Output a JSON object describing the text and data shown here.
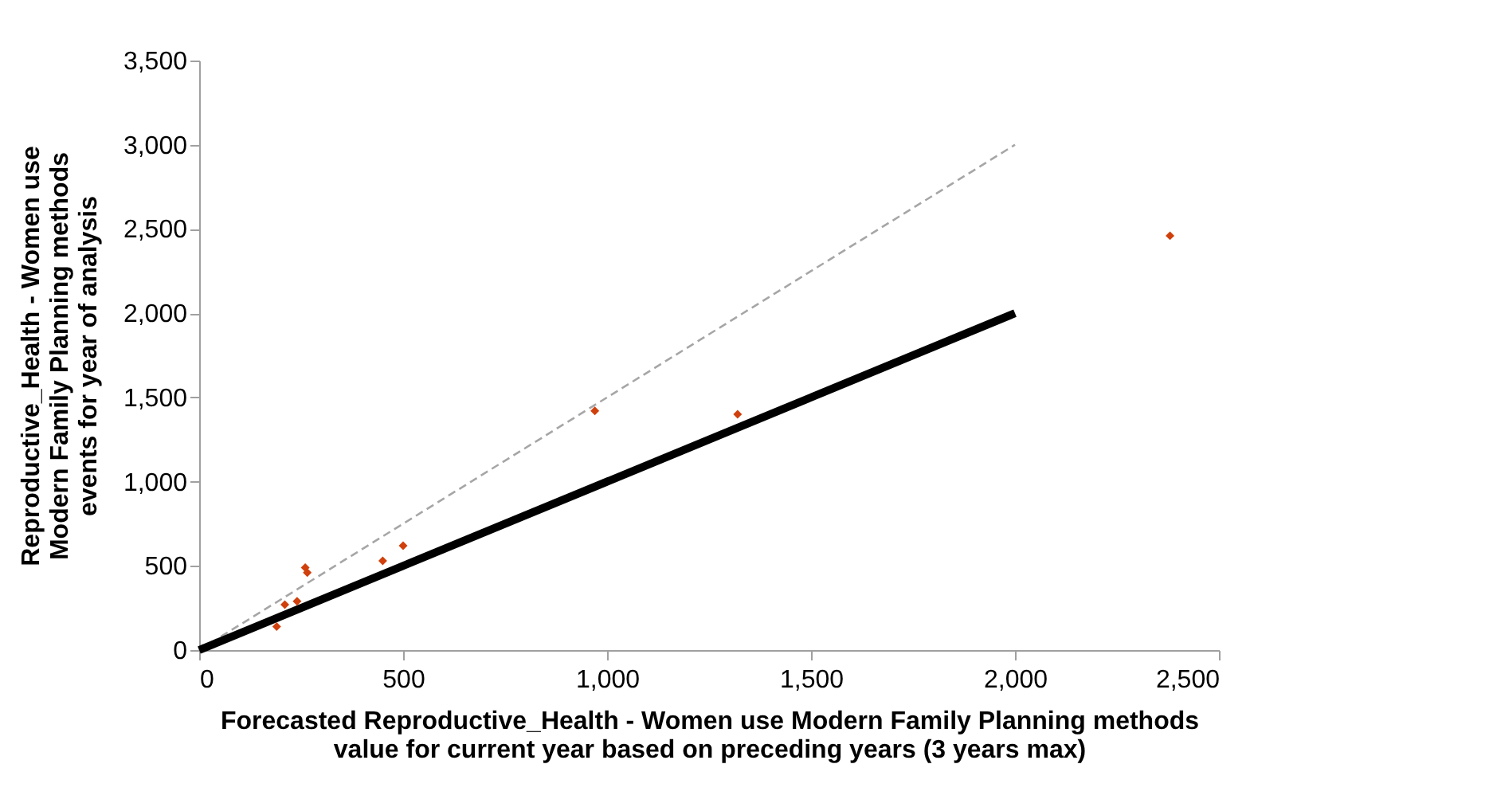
{
  "chart_data": {
    "type": "scatter",
    "xlabel": "Forecasted Reproductive_Health - Women use Modern Family Planning methods value for current year based on preceding years (3 years max)",
    "ylabel": "Reproductive_Health - Women use Modern Family Planning methods events for year of analysis",
    "xlim": [
      0,
      2500
    ],
    "xticks": [
      {
        "value": 0,
        "label": "0"
      },
      {
        "value": 500,
        "label": "500"
      },
      {
        "value": 1000,
        "label": "1,000"
      },
      {
        "value": 1500,
        "label": "1,500"
      },
      {
        "value": 2000,
        "label": "2,000"
      },
      {
        "value": 2500,
        "label": "2,500"
      }
    ],
    "ylim": [
      0,
      3500
    ],
    "yticks": [
      {
        "value": 0,
        "label": "0"
      },
      {
        "value": 500,
        "label": "500"
      },
      {
        "value": 1000,
        "label": "1,000"
      },
      {
        "value": 1500,
        "label": "1,500"
      },
      {
        "value": 2000,
        "label": "2,000"
      },
      {
        "value": 2500,
        "label": "2,500"
      },
      {
        "value": 3000,
        "label": "3,000"
      },
      {
        "value": 3500,
        "label": "3,500"
      }
    ],
    "grid": false,
    "series": [
      {
        "type": "line",
        "color": "#a6a6a6",
        "line_style": "dashed",
        "marker": "none",
        "x": [
          0,
          2000
        ],
        "values": [
          0,
          3000
        ]
      },
      {
        "type": "line",
        "color": "#000000",
        "line_style": "solid",
        "marker": "none",
        "x": [
          0,
          2000
        ],
        "values": [
          0,
          2000
        ]
      },
      {
        "color": "#d0400c",
        "marker": "diamond",
        "x": [
          190,
          210,
          240,
          260,
          265,
          450,
          500,
          970,
          1320,
          2380
        ],
        "values": [
          140,
          270,
          290,
          490,
          460,
          530,
          620,
          1420,
          1400,
          2460
        ]
      }
    ]
  }
}
